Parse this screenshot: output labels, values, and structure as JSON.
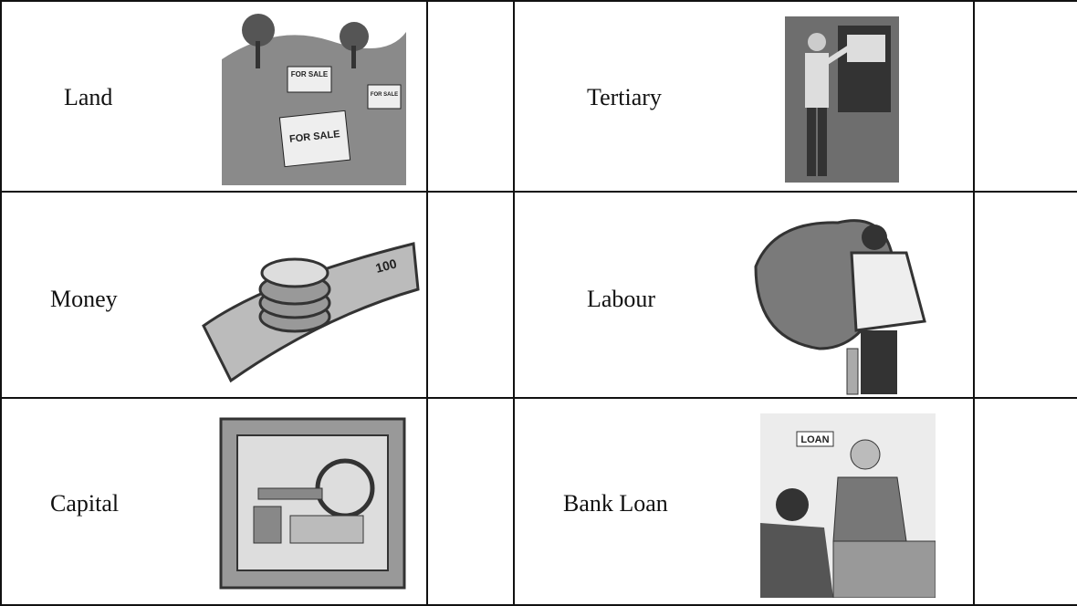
{
  "table": {
    "rows": [
      [
        {
          "label": "Land",
          "image_text": [
            "FOR SALE",
            "FOR SALE",
            "FOR SALE"
          ]
        },
        {
          "label": "Tertiary"
        }
      ],
      [
        {
          "label": "Money",
          "image_text": [
            "100"
          ]
        },
        {
          "label": "Labour"
        }
      ],
      [
        {
          "label": "Capital"
        },
        {
          "label": "Bank Loan",
          "image_text": [
            "LOAN"
          ]
        }
      ]
    ]
  }
}
